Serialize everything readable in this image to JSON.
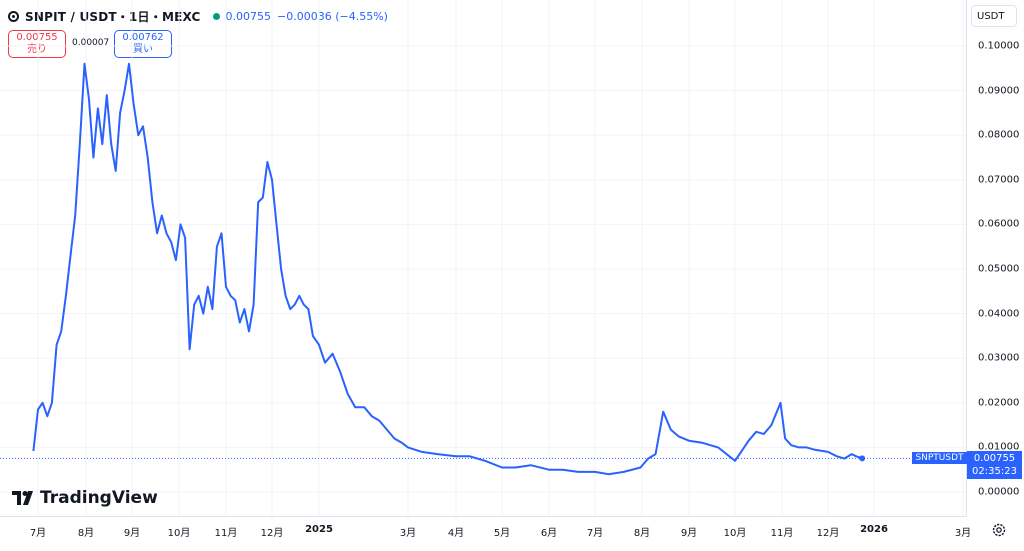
{
  "header": {
    "symbol": "SNPIT / USDT・1日・MEXC",
    "price": "0.00755",
    "change": "−0.00036 (−4.55%)"
  },
  "quotes": {
    "sell_price": "0.00755",
    "sell_label": "売り",
    "spread": "0.00007",
    "buy_price": "0.00762",
    "buy_label": "買い"
  },
  "unit": "USDT",
  "last_tag": {
    "symbol": "SNPTUSDT",
    "price": "0.00755",
    "countdown": "02:35:23"
  },
  "brand": "TradingView",
  "colors": {
    "line": "#2962ff",
    "sell": "#f23645",
    "buy": "#2962ff"
  },
  "chart_data": {
    "type": "line",
    "series": [
      {
        "name": "SNPTUSDT",
        "x": [
          "2024-06-28",
          "2024-07-01",
          "2024-07-04",
          "2024-07-07",
          "2024-07-10",
          "2024-07-13",
          "2024-07-16",
          "2024-07-19",
          "2024-07-22",
          "2024-07-25",
          "2024-07-28",
          "2024-07-31",
          "2024-08-03",
          "2024-08-06",
          "2024-08-09",
          "2024-08-12",
          "2024-08-15",
          "2024-08-18",
          "2024-08-21",
          "2024-08-24",
          "2024-08-27",
          "2024-08-30",
          "2024-09-02",
          "2024-09-05",
          "2024-09-08",
          "2024-09-11",
          "2024-09-14",
          "2024-09-17",
          "2024-09-20",
          "2024-09-23",
          "2024-09-26",
          "2024-09-29",
          "2024-10-02",
          "2024-10-05",
          "2024-10-08",
          "2024-10-11",
          "2024-10-14",
          "2024-10-17",
          "2024-10-20",
          "2024-10-23",
          "2024-10-26",
          "2024-10-29",
          "2024-11-01",
          "2024-11-04",
          "2024-11-07",
          "2024-11-10",
          "2024-11-13",
          "2024-11-16",
          "2024-11-19",
          "2024-11-22",
          "2024-11-25",
          "2024-11-28",
          "2024-12-01",
          "2024-12-04",
          "2024-12-07",
          "2024-12-10",
          "2024-12-13",
          "2024-12-16",
          "2024-12-19",
          "2024-12-22",
          "2024-12-25",
          "2024-12-28",
          "2025-01-01",
          "2025-01-05",
          "2025-01-10",
          "2025-01-15",
          "2025-01-20",
          "2025-01-25",
          "2025-01-31",
          "2025-02-05",
          "2025-02-10",
          "2025-02-15",
          "2025-02-20",
          "2025-02-25",
          "2025-03-01",
          "2025-03-10",
          "2025-03-20",
          "2025-04-01",
          "2025-04-10",
          "2025-04-20",
          "2025-05-01",
          "2025-05-10",
          "2025-05-20",
          "2025-06-01",
          "2025-06-10",
          "2025-06-20",
          "2025-07-01",
          "2025-07-10",
          "2025-07-20",
          "2025-07-31",
          "2025-08-05",
          "2025-08-10",
          "2025-08-15",
          "2025-08-20",
          "2025-08-25",
          "2025-09-01",
          "2025-09-10",
          "2025-09-20",
          "2025-10-01",
          "2025-10-05",
          "2025-10-10",
          "2025-10-15",
          "2025-10-20",
          "2025-10-25",
          "2025-10-31",
          "2025-11-03",
          "2025-11-07",
          "2025-11-12",
          "2025-11-17",
          "2025-11-22",
          "2025-12-01",
          "2025-12-07",
          "2025-12-12",
          "2025-12-17",
          "2025-12-20",
          "2025-12-24"
        ],
        "values": [
          0.0092,
          0.0185,
          0.02,
          0.017,
          0.02,
          0.033,
          0.036,
          0.044,
          0.053,
          0.062,
          0.078,
          0.096,
          0.088,
          0.075,
          0.086,
          0.078,
          0.089,
          0.078,
          0.072,
          0.085,
          0.09,
          0.096,
          0.087,
          0.08,
          0.082,
          0.075,
          0.065,
          0.058,
          0.062,
          0.058,
          0.056,
          0.052,
          0.06,
          0.057,
          0.032,
          0.042,
          0.044,
          0.04,
          0.046,
          0.041,
          0.055,
          0.058,
          0.046,
          0.044,
          0.043,
          0.038,
          0.041,
          0.036,
          0.042,
          0.065,
          0.066,
          0.074,
          0.07,
          0.06,
          0.05,
          0.044,
          0.041,
          0.042,
          0.044,
          0.042,
          0.041,
          0.035,
          0.033,
          0.029,
          0.031,
          0.027,
          0.022,
          0.019,
          0.019,
          0.017,
          0.016,
          0.014,
          0.012,
          0.011,
          0.01,
          0.009,
          0.0085,
          0.008,
          0.008,
          0.007,
          0.0055,
          0.0055,
          0.006,
          0.005,
          0.005,
          0.0045,
          0.0045,
          0.004,
          0.0045,
          0.0055,
          0.0075,
          0.0085,
          0.018,
          0.014,
          0.0125,
          0.0115,
          0.011,
          0.01,
          0.007,
          0.009,
          0.0115,
          0.0135,
          0.013,
          0.015,
          0.02,
          0.012,
          0.0105,
          0.01,
          0.01,
          0.0095,
          0.009,
          0.008,
          0.0075,
          0.0085,
          0.008,
          0.00755
        ]
      }
    ],
    "x_ticks": [
      "7月",
      "8月",
      "9月",
      "10月",
      "11月",
      "12月",
      "2025",
      "3月",
      "4月",
      "5月",
      "6月",
      "7月",
      "8月",
      "9月",
      "10月",
      "11月",
      "12月",
      "2026",
      "3月"
    ],
    "y_ticks": [
      "0.10000",
      "0.09000",
      "0.08000",
      "0.07000",
      "0.06000",
      "0.05000",
      "0.04000",
      "0.03000",
      "0.02000",
      "0.01000",
      "0.00000"
    ],
    "ylim": [
      0,
      0.1
    ],
    "last_value": 0.00755,
    "grid": true,
    "xlabel": "",
    "ylabel": ""
  }
}
